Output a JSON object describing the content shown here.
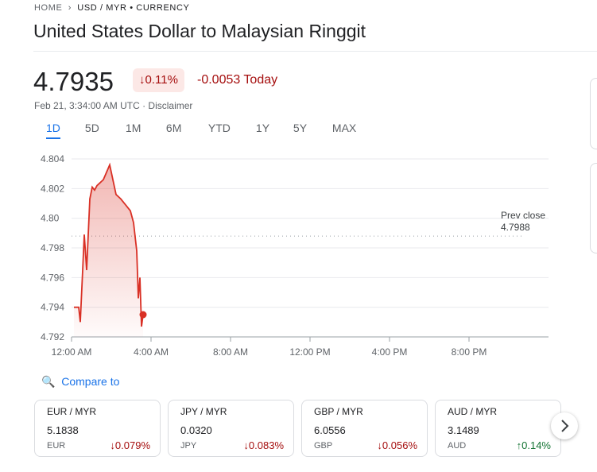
{
  "breadcrumb": {
    "home": "HOME",
    "path": "USD / MYR • CURRENCY"
  },
  "title": "United States Dollar to Malaysian Ringgit",
  "price": "4.7935",
  "change_percent": "0.11%",
  "change_today": "-0.0053 Today",
  "timestamp": "Feb 21, 3:34:00 AM UTC",
  "disclaimer": "Disclaimer",
  "ranges": [
    "1D",
    "5D",
    "1M",
    "6M",
    "YTD",
    "1Y",
    "5Y",
    "MAX"
  ],
  "chart_data": {
    "type": "line",
    "x": [
      0.12,
      0.36,
      0.44,
      0.56,
      0.64,
      0.76,
      0.92,
      1.04,
      1.16,
      1.28,
      1.6,
      1.92,
      2.24,
      2.48,
      2.72,
      2.96,
      3.12,
      3.28,
      3.36,
      3.44,
      3.52,
      3.6
    ],
    "series": [
      {
        "color": "#d93025",
        "values": [
          4.794,
          4.794,
          4.793,
          4.7965,
          4.7989,
          4.7965,
          4.8013,
          4.8021,
          4.8019,
          4.8022,
          4.8026,
          4.8036,
          4.8016,
          4.8013,
          4.8009,
          4.8005,
          4.7997,
          4.7978,
          4.7946,
          4.796,
          4.7927,
          4.7935
        ]
      }
    ],
    "xlim": [
      0,
      24
    ],
    "xticks": [
      {
        "value": 0,
        "label": "12:00 AM"
      },
      {
        "value": 4,
        "label": "4:00 AM"
      },
      {
        "value": 8,
        "label": "8:00 AM"
      },
      {
        "value": 12,
        "label": "12:00 PM"
      },
      {
        "value": 16,
        "label": "4:00 PM"
      },
      {
        "value": 20,
        "label": "8:00 PM"
      }
    ],
    "ylim": [
      4.792,
      4.804
    ],
    "yticks": [
      4.804,
      4.802,
      {
        "value": 4.8,
        "label": "4.80"
      },
      4.798,
      4.796,
      4.794,
      4.792
    ],
    "grid": true,
    "reference_line": {
      "label": "Prev close",
      "value": 4.7988
    }
  },
  "compare": "Compare to",
  "cards": [
    {
      "pair": "EUR / MYR",
      "price": "5.1838",
      "code": "EUR",
      "change": "0.079%"
    },
    {
      "pair": "JPY / MYR",
      "price": "0.0320",
      "code": "JPY",
      "change": "0.083%"
    },
    {
      "pair": "GBP / MYR",
      "price": "6.0556",
      "code": "GBP",
      "change": "0.056%"
    },
    {
      "pair": "AUD / MYR",
      "price": "3.1489",
      "code": "AUD",
      "change": "0.14%"
    }
  ]
}
